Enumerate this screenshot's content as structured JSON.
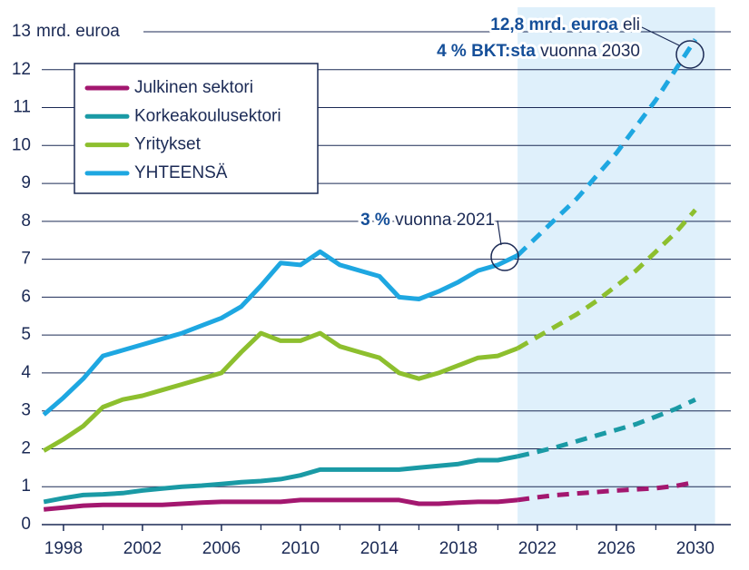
{
  "chart_data": {
    "type": "line",
    "ylabel": "mrd. euroa",
    "x": [
      1997,
      1998,
      1999,
      2000,
      2001,
      2002,
      2003,
      2004,
      2005,
      2006,
      2007,
      2008,
      2009,
      2010,
      2011,
      2012,
      2013,
      2014,
      2015,
      2016,
      2017,
      2018,
      2019,
      2020,
      2021,
      2022,
      2023,
      2024,
      2025,
      2026,
      2027,
      2028,
      2029,
      2030
    ],
    "series": [
      {
        "name": "Julkinen sektori",
        "color": "#a3176f",
        "values": [
          0.4,
          0.45,
          0.5,
          0.52,
          0.52,
          0.52,
          0.52,
          0.55,
          0.58,
          0.6,
          0.6,
          0.6,
          0.6,
          0.65,
          0.65,
          0.65,
          0.65,
          0.65,
          0.65,
          0.55,
          0.55,
          0.58,
          0.6,
          0.6,
          0.65,
          0.72,
          0.78,
          0.82,
          0.86,
          0.9,
          0.93,
          0.96,
          1.02,
          1.12
        ]
      },
      {
        "name": "Korkeakoulusektori",
        "color": "#1a9aa5",
        "values": [
          0.6,
          0.7,
          0.78,
          0.8,
          0.83,
          0.9,
          0.95,
          1.0,
          1.03,
          1.07,
          1.12,
          1.15,
          1.2,
          1.3,
          1.45,
          1.45,
          1.45,
          1.45,
          1.45,
          1.5,
          1.55,
          1.6,
          1.7,
          1.7,
          1.8,
          1.92,
          2.05,
          2.2,
          2.35,
          2.5,
          2.65,
          2.85,
          3.05,
          3.3
        ]
      },
      {
        "name": "Yritykset",
        "color": "#8dbf2e",
        "values": [
          1.95,
          2.25,
          2.6,
          3.1,
          3.3,
          3.4,
          3.55,
          3.7,
          3.85,
          4.0,
          4.55,
          5.05,
          4.85,
          4.85,
          5.05,
          4.7,
          4.55,
          4.4,
          4.0,
          3.85,
          4.0,
          4.2,
          4.4,
          4.45,
          4.65,
          4.95,
          5.25,
          5.55,
          5.9,
          6.3,
          6.7,
          7.2,
          7.7,
          8.3
        ]
      },
      {
        "name": "YHTEENSÄ",
        "color": "#1ea7e1",
        "values": [
          2.9,
          3.35,
          3.85,
          4.45,
          4.6,
          4.75,
          4.9,
          5.05,
          5.25,
          5.45,
          5.75,
          6.3,
          6.9,
          6.85,
          7.2,
          6.85,
          6.7,
          6.55,
          6.0,
          5.95,
          6.15,
          6.4,
          6.7,
          6.85,
          7.1,
          7.6,
          8.1,
          8.6,
          9.2,
          9.8,
          10.5,
          11.2,
          12.0,
          12.8
        ]
      }
    ],
    "xlim": [
      1996.9,
      2031.8
    ],
    "xticks": [
      1998,
      2002,
      2006,
      2010,
      2014,
      2018,
      2022,
      2026,
      2030
    ],
    "xminor_ticks": [
      2000,
      2004,
      2008,
      2012,
      2016,
      2020,
      2024,
      2028
    ],
    "ylim": [
      0,
      13
    ],
    "yticks": [
      0,
      1,
      2,
      3,
      4,
      5,
      6,
      7,
      8,
      9,
      10,
      11,
      12,
      13
    ],
    "grid": true,
    "shaded_xrange": [
      2021,
      2031
    ],
    "annotations": [
      {
        "parts": [
          {
            "text": "3 %",
            "bold": true
          },
          {
            "text": " vuonna 2021",
            "bold": false
          }
        ]
      },
      {
        "parts": [
          {
            "text": "12,8 mrd. euroa",
            "bold": true
          },
          {
            "text": " eli",
            "bold": false
          }
        ]
      },
      {
        "parts": [
          {
            "text": "4 % BKT:sta",
            "bold": true
          },
          {
            "text": " vuonna 2030",
            "bold": false
          }
        ]
      }
    ]
  }
}
